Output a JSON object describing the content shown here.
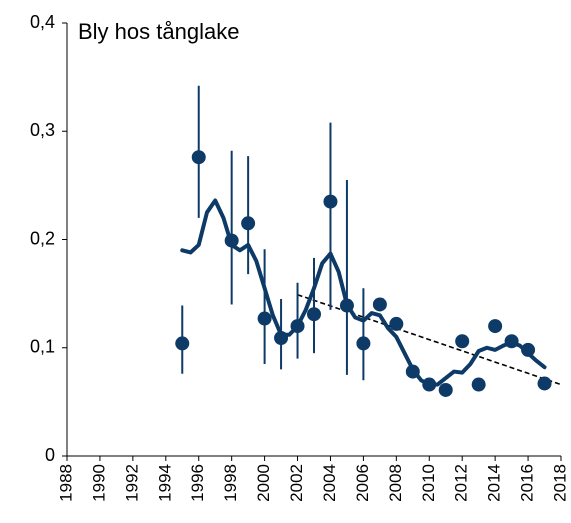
{
  "chart_data": {
    "type": "scatter-smooth",
    "title": "Bly hos tånglake",
    "xlim": [
      1988,
      2018
    ],
    "xticks": [
      1988,
      1990,
      1992,
      1994,
      1996,
      1998,
      2000,
      2002,
      2004,
      2006,
      2008,
      2010,
      2012,
      2014,
      2016,
      2018
    ],
    "ylim": [
      0,
      0.4
    ],
    "yticks": [
      0,
      {
        "value": 0.1,
        "label": "0,1"
      },
      {
        "value": 0.2,
        "label": "0,2"
      },
      {
        "value": 0.3,
        "label": "0,3"
      },
      {
        "value": 0.4,
        "label": "0,4"
      }
    ],
    "points": {
      "color": "#0d3a66",
      "x": [
        1995,
        1996,
        1998,
        1999,
        2000,
        2001,
        2002,
        2003,
        2004,
        2005,
        2006,
        2007,
        2008,
        2009,
        2010,
        2011,
        2012,
        2013,
        2014,
        2015,
        2016,
        2017
      ],
      "values": [
        0.104,
        0.276,
        0.199,
        0.215,
        0.127,
        0.109,
        0.12,
        0.131,
        0.235,
        0.139,
        0.104,
        0.14,
        0.122,
        0.078,
        0.066,
        0.061,
        0.106,
        0.066,
        0.12,
        0.106,
        0.098,
        0.067
      ],
      "error_low": [
        0.076,
        0.22,
        0.14,
        0.168,
        0.085,
        0.08,
        0.09,
        0.095,
        0.135,
        0.075,
        0.07,
        null,
        null,
        null,
        null,
        null,
        null,
        null,
        null,
        null,
        null,
        null
      ],
      "error_high": [
        0.139,
        0.342,
        0.282,
        0.277,
        0.191,
        0.145,
        0.16,
        0.183,
        0.308,
        0.255,
        0.155,
        null,
        null,
        null,
        null,
        null,
        null,
        null,
        null,
        null,
        null,
        null
      ]
    },
    "smooth": {
      "color": "#0d3a66",
      "x": [
        1995,
        1995.5,
        1996,
        1996.5,
        1997,
        1997.5,
        1998,
        1998.5,
        1999,
        1999.5,
        2000,
        2000.5,
        2001,
        2001.5,
        2002,
        2002.5,
        2003,
        2003.5,
        2004,
        2004.5,
        2005,
        2005.5,
        2006,
        2006.5,
        2007,
        2007.5,
        2008,
        2008.5,
        2009,
        2009.5,
        2010,
        2010.5,
        2011,
        2011.5,
        2012,
        2012.5,
        2013,
        2013.5,
        2014,
        2014.5,
        2015,
        2015.5,
        2016,
        2016.5,
        2017
      ],
      "values": [
        0.19,
        0.188,
        0.195,
        0.225,
        0.236,
        0.22,
        0.195,
        0.19,
        0.195,
        0.18,
        0.155,
        0.13,
        0.112,
        0.112,
        0.12,
        0.135,
        0.155,
        0.178,
        0.187,
        0.17,
        0.14,
        0.128,
        0.125,
        0.132,
        0.13,
        0.118,
        0.11,
        0.095,
        0.08,
        0.07,
        0.066,
        0.066,
        0.072,
        0.078,
        0.077,
        0.085,
        0.097,
        0.1,
        0.098,
        0.102,
        0.105,
        0.102,
        0.095,
        0.088,
        0.082
      ]
    },
    "trend": {
      "color": "#000000",
      "dashed": true,
      "x": [
        2002,
        2018
      ],
      "values": [
        0.149,
        0.066
      ]
    }
  }
}
